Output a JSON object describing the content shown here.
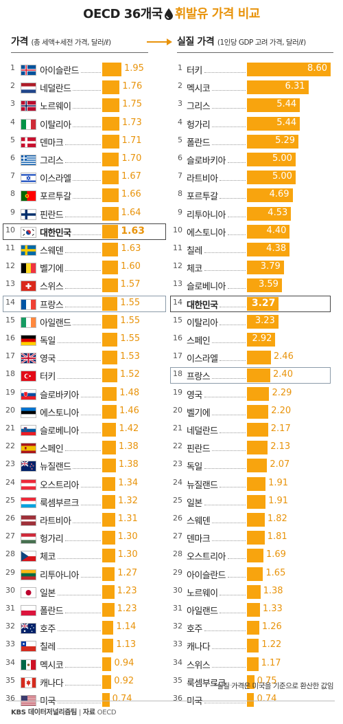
{
  "title": {
    "pre": "OECD 36개국",
    "post": "휘발유 가격 비교"
  },
  "left_header": {
    "title": "가격",
    "subtitle": "(총 세액+세전 가격, 달러/ℓ)"
  },
  "right_header": {
    "title": "실질 가격",
    "subtitle": "(1인당 GDP 고려 가격, 달러/ℓ)"
  },
  "note": "*실질 가격은 미국을 기준으로 환산한 값임",
  "footer": {
    "source": "KBS 데이터저널리즘팀",
    "sep": "|",
    "label": "자료",
    "org": "OECD"
  },
  "colors": {
    "bar": "#f8a40e",
    "value": "#e8930b",
    "highlight_box": "#444444"
  },
  "chart_data": [
    {
      "type": "bar",
      "orientation": "horizontal",
      "title": "가격",
      "subtitle": "(총 세액+세전 가격, 달러/ℓ)",
      "highlight": [
        "대한민국",
        "프랑스"
      ],
      "rows": [
        {
          "rank": "1",
          "country": "아이슬란드",
          "flag": "iceland-flag",
          "value": 1.95,
          "label": "1.95"
        },
        {
          "rank": "2",
          "country": "네덜란드",
          "flag": "netherlands-flag",
          "value": 1.76,
          "label": "1.76"
        },
        {
          "rank": "3",
          "country": "노르웨이",
          "flag": "norway-flag",
          "value": 1.75,
          "label": "1.75"
        },
        {
          "rank": "4",
          "country": "이탈리아",
          "flag": "italy-flag",
          "value": 1.73,
          "label": "1.73"
        },
        {
          "rank": "5",
          "country": "덴마크",
          "flag": "denmark-flag",
          "value": 1.71,
          "label": "1.71"
        },
        {
          "rank": "6",
          "country": "그리스",
          "flag": "greece-flag",
          "value": 1.7,
          "label": "1.70"
        },
        {
          "rank": "7",
          "country": "이스라엘",
          "flag": "israel-flag",
          "value": 1.67,
          "label": "1.67"
        },
        {
          "rank": "8",
          "country": "포르투갈",
          "flag": "portugal-flag",
          "value": 1.66,
          "label": "1.66"
        },
        {
          "rank": "9",
          "country": "핀란드",
          "flag": "finland-flag",
          "value": 1.64,
          "label": "1.64"
        },
        {
          "rank": "10",
          "country": "대한민국",
          "flag": "korea-flag",
          "value": 1.63,
          "label": "1.63"
        },
        {
          "rank": "11",
          "country": "스웨덴",
          "flag": "sweden-flag",
          "value": 1.63,
          "label": "1.63"
        },
        {
          "rank": "12",
          "country": "벨기에",
          "flag": "belgium-flag",
          "value": 1.6,
          "label": "1.60"
        },
        {
          "rank": "13",
          "country": "스위스",
          "flag": "switzerland-flag",
          "value": 1.57,
          "label": "1.57"
        },
        {
          "rank": "14",
          "country": "프랑스",
          "flag": "france-flag",
          "value": 1.55,
          "label": "1.55"
        },
        {
          "rank": "15",
          "country": "아일랜드",
          "flag": "ireland-flag",
          "value": 1.55,
          "label": "1.55"
        },
        {
          "rank": "16",
          "country": "독일",
          "flag": "germany-flag",
          "value": 1.55,
          "label": "1.55"
        },
        {
          "rank": "17",
          "country": "영국",
          "flag": "uk-flag",
          "value": 1.53,
          "label": "1.53"
        },
        {
          "rank": "18",
          "country": "터키",
          "flag": "turkey-flag",
          "value": 1.52,
          "label": "1.52"
        },
        {
          "rank": "19",
          "country": "슬로바키아",
          "flag": "slovakia-flag",
          "value": 1.48,
          "label": "1.48"
        },
        {
          "rank": "20",
          "country": "에스토니아",
          "flag": "estonia-flag",
          "value": 1.46,
          "label": "1.46"
        },
        {
          "rank": "21",
          "country": "슬로베니아",
          "flag": "slovenia-flag",
          "value": 1.42,
          "label": "1.42"
        },
        {
          "rank": "22",
          "country": "스페인",
          "flag": "spain-flag",
          "value": 1.38,
          "label": "1.38"
        },
        {
          "rank": "23",
          "country": "뉴질랜드",
          "flag": "new-zealand-flag",
          "value": 1.38,
          "label": "1.38"
        },
        {
          "rank": "24",
          "country": "오스트리아",
          "flag": "austria-flag",
          "value": 1.34,
          "label": "1.34"
        },
        {
          "rank": "25",
          "country": "룩셈부르크",
          "flag": "luxembourg-flag",
          "value": 1.32,
          "label": "1.32"
        },
        {
          "rank": "26",
          "country": "라트비아",
          "flag": "latvia-flag",
          "value": 1.31,
          "label": "1.31"
        },
        {
          "rank": "27",
          "country": "헝가리",
          "flag": "hungary-flag",
          "value": 1.3,
          "label": "1.30"
        },
        {
          "rank": "28",
          "country": "체코",
          "flag": "czech-flag",
          "value": 1.3,
          "label": "1.30"
        },
        {
          "rank": "29",
          "country": "리투아니아",
          "flag": "lithuania-flag",
          "value": 1.27,
          "label": "1.27"
        },
        {
          "rank": "30",
          "country": "일본",
          "flag": "japan-flag",
          "value": 1.23,
          "label": "1.23"
        },
        {
          "rank": "31",
          "country": "폴란드",
          "flag": "poland-flag",
          "value": 1.23,
          "label": "1.23"
        },
        {
          "rank": "32",
          "country": "호주",
          "flag": "australia-flag",
          "value": 1.14,
          "label": "1.14"
        },
        {
          "rank": "33",
          "country": "칠레",
          "flag": "chile-flag",
          "value": 1.13,
          "label": "1.13"
        },
        {
          "rank": "34",
          "country": "멕시코",
          "flag": "mexico-flag",
          "value": 0.94,
          "label": "0.94"
        },
        {
          "rank": "35",
          "country": "캐나다",
          "flag": "canada-flag",
          "value": 0.92,
          "label": "0.92"
        },
        {
          "rank": "36",
          "country": "미국",
          "flag": "usa-flag",
          "value": 0.74,
          "label": "0.74"
        }
      ]
    },
    {
      "type": "bar",
      "orientation": "horizontal",
      "title": "실질 가격",
      "subtitle": "(1인당 GDP 고려 가격, 달러/ℓ)",
      "highlight": [
        "대한민국",
        "프랑스"
      ],
      "rows": [
        {
          "rank": "1",
          "country": "터키",
          "value": 8.6,
          "label": "8.60"
        },
        {
          "rank": "2",
          "country": "멕시코",
          "value": 6.31,
          "label": "6.31"
        },
        {
          "rank": "3",
          "country": "그리스",
          "value": 5.44,
          "label": "5.44"
        },
        {
          "rank": "4",
          "country": "헝가리",
          "value": 5.44,
          "label": "5.44"
        },
        {
          "rank": "5",
          "country": "폴란드",
          "value": 5.29,
          "label": "5.29"
        },
        {
          "rank": "6",
          "country": "슬로바키아",
          "value": 5.0,
          "label": "5.00"
        },
        {
          "rank": "7",
          "country": "라트비아",
          "value": 5.0,
          "label": "5.00"
        },
        {
          "rank": "8",
          "country": "포르투갈",
          "value": 4.69,
          "label": "4.69"
        },
        {
          "rank": "9",
          "country": "리투아니아",
          "value": 4.53,
          "label": "4.53"
        },
        {
          "rank": "10",
          "country": "에스토니아",
          "value": 4.4,
          "label": "4.40"
        },
        {
          "rank": "11",
          "country": "칠레",
          "value": 4.38,
          "label": "4.38"
        },
        {
          "rank": "12",
          "country": "체코",
          "value": 3.79,
          "label": "3.79"
        },
        {
          "rank": "13",
          "country": "슬로베니아",
          "value": 3.59,
          "label": "3.59"
        },
        {
          "rank": "14",
          "country": "대한민국",
          "value": 3.27,
          "label": "3.27"
        },
        {
          "rank": "15",
          "country": "이탈리아",
          "value": 3.23,
          "label": "3.23"
        },
        {
          "rank": "16",
          "country": "스페인",
          "value": 2.92,
          "label": "2.92"
        },
        {
          "rank": "17",
          "country": "이스라엘",
          "value": 2.46,
          "label": "2.46"
        },
        {
          "rank": "18",
          "country": "프랑스",
          "value": 2.4,
          "label": "2.40"
        },
        {
          "rank": "19",
          "country": "영국",
          "value": 2.29,
          "label": "2.29"
        },
        {
          "rank": "20",
          "country": "벨기에",
          "value": 2.2,
          "label": "2.20"
        },
        {
          "rank": "21",
          "country": "네덜란드",
          "value": 2.17,
          "label": "2.17"
        },
        {
          "rank": "22",
          "country": "핀란드",
          "value": 2.13,
          "label": "2.13"
        },
        {
          "rank": "23",
          "country": "독일",
          "value": 2.07,
          "label": "2.07"
        },
        {
          "rank": "24",
          "country": "뉴질랜드",
          "value": 1.91,
          "label": "1.91"
        },
        {
          "rank": "25",
          "country": "일본",
          "value": 1.91,
          "label": "1.91"
        },
        {
          "rank": "26",
          "country": "스웨덴",
          "value": 1.82,
          "label": "1.82"
        },
        {
          "rank": "27",
          "country": "덴마크",
          "value": 1.81,
          "label": "1.81"
        },
        {
          "rank": "28",
          "country": "오스트리아",
          "value": 1.69,
          "label": "1.69"
        },
        {
          "rank": "29",
          "country": "아이슬란드",
          "value": 1.65,
          "label": "1.65"
        },
        {
          "rank": "30",
          "country": "노르웨이",
          "value": 1.38,
          "label": "1.38"
        },
        {
          "rank": "31",
          "country": "아일랜드",
          "value": 1.33,
          "label": "1.33"
        },
        {
          "rank": "32",
          "country": "호주",
          "value": 1.26,
          "label": "1.26"
        },
        {
          "rank": "33",
          "country": "캐나다",
          "value": 1.22,
          "label": "1.22"
        },
        {
          "rank": "34",
          "country": "스위스",
          "value": 1.17,
          "label": "1.17"
        },
        {
          "rank": "35",
          "country": "룩셈부르크",
          "value": 0.75,
          "label": "0.75"
        },
        {
          "rank": "36",
          "country": "미국",
          "value": 0.74,
          "label": "0.74"
        }
      ]
    }
  ]
}
